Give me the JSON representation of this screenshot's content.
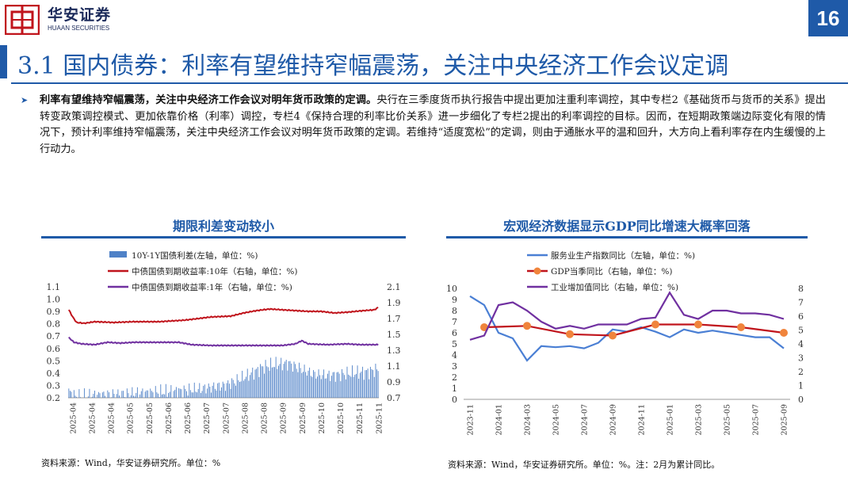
{
  "header": {
    "brand_cn": "华安证券",
    "brand_en": "HUAAN SECURITIES",
    "page_number": "16"
  },
  "title": "3.1 国内债券：利率有望维持窄幅震荡，关注中央经济工作会议定调",
  "bullet": {
    "bold": "利率有望维持窄幅震荡，关注中央经济工作会议对明年货币政策的定调。",
    "text": "央行在三季度货币执行报告中提出更加注重利率调控，其中专栏2《基础货币与货币的关系》提出转变政策调控模式、更加依靠价格（利率）调控，专栏4《保持合理的利率比价关系》进一步细化了专栏2提出的利率调控的目标。因而，在短期政策端边际变化有限的情况下，预计利率维持窄幅震荡，关注中央经济工作会议对明年货币政策的定调。若维持“适度宽松”的定调，则由于通胀水平的温和回升，大方向上看利率存在内生缓慢的上行动力。"
  },
  "chart_data": [
    {
      "type": "bar+line",
      "title": "期限利差变动较小",
      "legend": [
        "10Y-1Y国债利差(左轴，单位：%)",
        "中债国债到期收益率:10年（右轴，单位：%)",
        "中债国债到期收益率:1年（右轴，单位：%)"
      ],
      "x_ticks": [
        "2025-04",
        "2025-04",
        "2025-04",
        "2025-05",
        "2025-05",
        "2025-06",
        "2025-06",
        "2025-07",
        "2025-07",
        "2025-08",
        "2025-08",
        "2025-09",
        "2025-09",
        "2025-10",
        "2025-10",
        "2025-11",
        "2025-11"
      ],
      "y_left": {
        "ticks": [
          "1.1",
          "1.0",
          "0.9",
          "0.8",
          "0.7",
          "0.6",
          "0.5",
          "0.4",
          "0.3",
          "0.2"
        ],
        "lim": [
          0.2,
          1.1
        ]
      },
      "y_right": {
        "ticks": [
          "2.1",
          "1.9",
          "1.7",
          "1.5",
          "1.3",
          "1.1",
          "0.9",
          "0.7"
        ],
        "lim": [
          0.7,
          2.1
        ]
      },
      "series": [
        {
          "name": "10Y-1Y国债利差",
          "kind": "bar",
          "color": "#4f81c7",
          "anchors": [
            [
              0,
              0.26
            ],
            [
              5,
              0.22
            ],
            [
              20,
              0.23
            ],
            [
              40,
              0.24
            ],
            [
              60,
              0.25
            ],
            [
              80,
              0.26
            ],
            [
              100,
              0.28
            ],
            [
              120,
              0.31
            ],
            [
              130,
              0.35
            ],
            [
              140,
              0.4
            ],
            [
              150,
              0.46
            ],
            [
              160,
              0.48
            ],
            [
              170,
              0.49
            ],
            [
              180,
              0.44
            ],
            [
              190,
              0.4
            ],
            [
              200,
              0.39
            ],
            [
              210,
              0.4
            ],
            [
              220,
              0.41
            ],
            [
              230,
              0.42
            ],
            [
              239,
              0.44
            ]
          ]
        },
        {
          "name": "中债国债到期收益率:10年",
          "kind": "line",
          "color": "#c0141c",
          "anchors": [
            [
              0,
              1.81
            ],
            [
              3,
              1.72
            ],
            [
              6,
              1.65
            ],
            [
              12,
              1.64
            ],
            [
              20,
              1.66
            ],
            [
              35,
              1.65
            ],
            [
              50,
              1.66
            ],
            [
              70,
              1.66
            ],
            [
              90,
              1.68
            ],
            [
              100,
              1.7
            ],
            [
              110,
              1.72
            ],
            [
              125,
              1.73
            ],
            [
              135,
              1.77
            ],
            [
              145,
              1.8
            ],
            [
              155,
              1.82
            ],
            [
              165,
              1.81
            ],
            [
              175,
              1.8
            ],
            [
              185,
              1.79
            ],
            [
              195,
              1.79
            ],
            [
              205,
              1.77
            ],
            [
              215,
              1.78
            ],
            [
              228,
              1.8
            ],
            [
              236,
              1.81
            ],
            [
              239,
              1.84
            ]
          ]
        },
        {
          "name": "中债国债到期收益率:1年",
          "kind": "line",
          "color": "#7030a0",
          "anchors": [
            [
              0,
              1.46
            ],
            [
              4,
              1.4
            ],
            [
              10,
              1.38
            ],
            [
              20,
              1.37
            ],
            [
              30,
              1.4
            ],
            [
              40,
              1.39
            ],
            [
              50,
              1.4
            ],
            [
              60,
              1.4
            ],
            [
              75,
              1.4
            ],
            [
              85,
              1.4
            ],
            [
              95,
              1.37
            ],
            [
              110,
              1.36
            ],
            [
              130,
              1.36
            ],
            [
              150,
              1.36
            ],
            [
              165,
              1.36
            ],
            [
              175,
              1.38
            ],
            [
              180,
              1.42
            ],
            [
              185,
              1.38
            ],
            [
              200,
              1.37
            ],
            [
              215,
              1.38
            ],
            [
              225,
              1.37
            ],
            [
              239,
              1.37
            ]
          ]
        }
      ]
    },
    {
      "type": "line",
      "title": "宏观经济数据显示GDP同比增速大概率回落",
      "legend": [
        "服务业生产指数同比（左轴，单位：%)",
        "GDP当季同比（右轴，单位：%)",
        "工业增加值同比（右轴，单位：%)"
      ],
      "x_ticks": [
        "2023-11",
        "2024-01",
        "2024-03",
        "2024-05",
        "2024-07",
        "2024-09",
        "2024-11",
        "2025-01",
        "2025-03",
        "2025-05",
        "2025-07",
        "2025-09"
      ],
      "y_left": {
        "ticks": [
          "10",
          "9",
          "8",
          "7",
          "6",
          "5",
          "4",
          "3",
          "2",
          "1",
          "0"
        ],
        "lim": [
          0,
          10
        ]
      },
      "y_right": {
        "ticks": [
          "8",
          "7",
          "6",
          "5",
          "4",
          "3",
          "2",
          "1",
          "0"
        ],
        "lim": [
          0,
          8
        ]
      },
      "series": [
        {
          "name": "服务业生产指数同比",
          "color": "#4a7fd4",
          "axis": "left",
          "x": [
            0,
            1,
            2,
            3,
            4,
            5,
            6,
            7,
            8,
            9,
            10,
            11,
            12,
            13,
            14,
            15,
            16,
            17,
            18,
            19,
            20,
            21,
            22
          ],
          "y": [
            9.3,
            8.5,
            6.0,
            5.5,
            3.5,
            4.8,
            4.7,
            4.8,
            4.6,
            5.1,
            6.3,
            6.1,
            6.5,
            6.1,
            5.6,
            6.3,
            6.0,
            6.2,
            6.0,
            5.8,
            5.6,
            5.6,
            4.6
          ]
        },
        {
          "name": "GDP当季同比",
          "color": "#c0141c",
          "axis": "right",
          "marker": true,
          "x": [
            1,
            4,
            7,
            10,
            13,
            16,
            19,
            22
          ],
          "y": [
            5.2,
            5.3,
            4.7,
            4.6,
            5.4,
            5.4,
            5.2,
            4.8
          ]
        },
        {
          "name": "工业增加值同比",
          "color": "#7030a0",
          "axis": "right",
          "x": [
            0,
            1,
            2,
            3,
            4,
            5,
            6,
            7,
            8,
            9,
            10,
            11,
            12,
            13,
            14,
            15,
            16,
            17,
            18,
            19,
            20,
            21,
            22
          ],
          "y": [
            4.3,
            4.6,
            6.8,
            7.0,
            6.4,
            5.6,
            5.1,
            5.3,
            5.1,
            5.4,
            5.4,
            5.4,
            5.8,
            5.9,
            7.7,
            6.1,
            5.8,
            6.4,
            6.4,
            6.2,
            6.2,
            6.1,
            5.8
          ]
        }
      ]
    }
  ],
  "chart1_source": "资料来源：Wind，华安证券研究所。单位：%",
  "chart2_source": "资料来源：Wind，华安证券研究所。单位：%。注：2月为累计同比。",
  "colors": {
    "brand_blue": "#1f5aa8",
    "logo_red": "#c0141c"
  },
  "icons": [
    "logo-icon",
    "arrow-bullet-icon"
  ]
}
